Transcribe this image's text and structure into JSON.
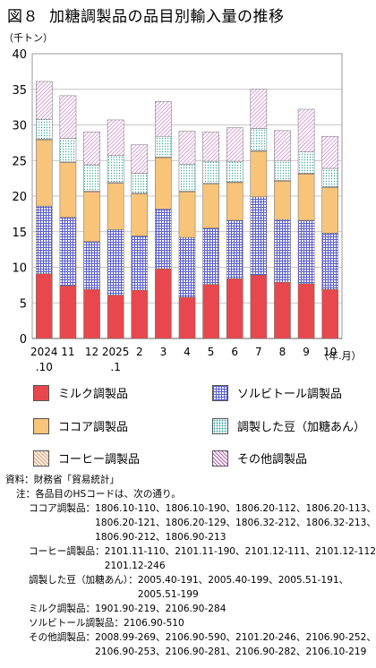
{
  "title": {
    "number": "図８",
    "text": "加糖調製品の品目別輸入量の推移"
  },
  "colors": {
    "milk": "#e8484d",
    "sorbitol": "#5a5ec8",
    "cocoa": "#f8c47a",
    "coffee": "#d9a07a",
    "beans": "#3aa8a0",
    "other": "#b85ab8"
  },
  "chart_data": {
    "type": "bar",
    "stacked": true,
    "ylabel": "（千トン）",
    "xlabel": "（年.月）",
    "ylim": [
      0,
      40
    ],
    "yticks": [
      0,
      5,
      10,
      15,
      20,
      25,
      30,
      35,
      40
    ],
    "grid": true,
    "categories": [
      [
        "2024",
        ".10"
      ],
      [
        "11",
        ""
      ],
      [
        "12",
        ""
      ],
      [
        "2025",
        ".1"
      ],
      [
        "2",
        ""
      ],
      [
        "3",
        ""
      ],
      [
        "4",
        ""
      ],
      [
        "5",
        ""
      ],
      [
        "6",
        ""
      ],
      [
        "7",
        ""
      ],
      [
        "8",
        ""
      ],
      [
        "9",
        ""
      ],
      [
        "10",
        ""
      ]
    ],
    "series": [
      {
        "name": "ミルク調製品",
        "key": "milk",
        "values": [
          9.1,
          7.4,
          6.9,
          6.1,
          6.8,
          9.8,
          5.8,
          7.6,
          8.4,
          8.9,
          7.9,
          7.7,
          6.9
        ]
      },
      {
        "name": "ソルビトール調製品",
        "key": "sorbitol",
        "values": [
          9.5,
          9.6,
          6.7,
          9.2,
          7.6,
          8.4,
          8.4,
          7.9,
          8.2,
          11.0,
          8.8,
          8.9,
          7.9
        ]
      },
      {
        "name": "ココア調製品",
        "key": "cocoa",
        "values": [
          9.3,
          7.7,
          7.0,
          6.5,
          5.9,
          7.2,
          6.4,
          6.2,
          5.3,
          6.4,
          5.4,
          6.5,
          6.4
        ]
      },
      {
        "name": "コーヒー調製品",
        "key": "coffee",
        "values": [
          0.1,
          0.1,
          0.1,
          0.1,
          0.1,
          0.1,
          0.1,
          0.1,
          0.1,
          0.1,
          0.1,
          0.1,
          0.1
        ]
      },
      {
        "name": "調製した豆（加糖あん）",
        "key": "beans",
        "values": [
          2.8,
          3.3,
          3.7,
          3.8,
          2.8,
          2.9,
          3.8,
          3.1,
          2.9,
          3.1,
          2.8,
          3.0,
          2.6
        ]
      },
      {
        "name": "その他調製品",
        "key": "other",
        "values": [
          5.3,
          6.0,
          4.6,
          5.0,
          4.0,
          4.9,
          4.6,
          4.1,
          4.7,
          5.5,
          4.2,
          6.0,
          4.5
        ]
      }
    ]
  },
  "legend_items": [
    {
      "key": "milk",
      "label": "ミルク調製品"
    },
    {
      "key": "sorbitol",
      "label": "ソルビトール調製品"
    },
    {
      "key": "cocoa",
      "label": "ココア調製品"
    },
    {
      "key": "beans",
      "label": "調製した豆（加糖あん）"
    },
    {
      "key": "coffee",
      "label": "コーヒー調製品"
    },
    {
      "key": "other",
      "label": "その他調製品"
    }
  ],
  "notes": {
    "source_label": "資料：",
    "source_text": "財務省「貿易統計」",
    "note_label": "注：",
    "note_text": "各品目のHSコードは、次の通り。",
    "hs": [
      {
        "label": "ココア調製品：",
        "lines": [
          "1806.10-110、1806.10-190、1806.20-112、1806.20-113、",
          "1806.20-121、1806.20-129、1806.32-212、1806.32-213、",
          "1806.90-212、1806.90-213"
        ]
      },
      {
        "label": "コーヒー調製品：",
        "lines": [
          "2101.11-110、2101.11-190、2101.12-111、2101.12-112、",
          "2101.12-246"
        ]
      },
      {
        "label": "調製した豆（加糖あん）：",
        "lines": [
          "2005.40-191、2005.40-199、2005.51-191、",
          "2005.51-199"
        ]
      },
      {
        "label": "ミルク調製品：",
        "lines": [
          "1901.90-219、2106.90-284"
        ]
      },
      {
        "label": "ソルビトール調製品：",
        "lines": [
          "2106.90-510"
        ]
      },
      {
        "label": "その他調製品：",
        "lines": [
          "2008.99-269、2106.90-590、2101.20-246、2106.90-252、",
          "2106.90-253、2106.90-281、2106.90-282、2106.10-219"
        ]
      }
    ]
  }
}
